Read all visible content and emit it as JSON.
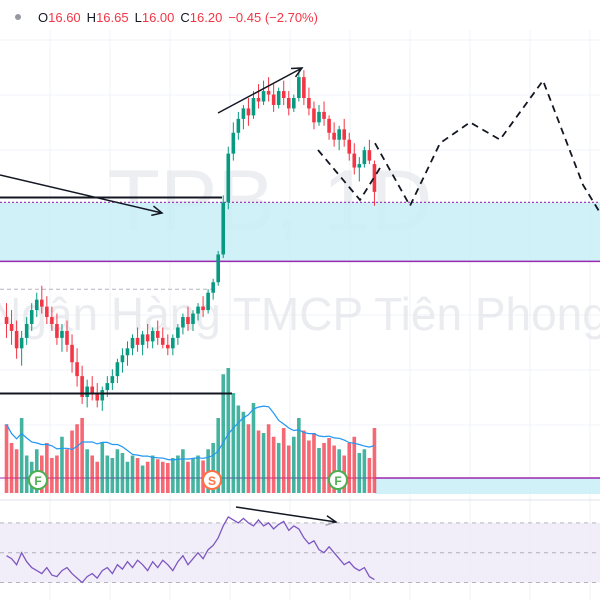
{
  "header": {
    "o_label": "O",
    "o_value": "16.60",
    "h_label": "H",
    "h_value": "16.65",
    "l_label": "L",
    "l_value": "16.00",
    "c_label": "C",
    "c_value": "16.20",
    "change": "−0.45 (−2.70%)"
  },
  "watermark": {
    "symbol": "TPB, 1D",
    "company": "Ngân Hàng TMCP Tiên Phong"
  },
  "markers": {
    "f1": "F",
    "s": "S",
    "f2": "F"
  },
  "colors": {
    "up": "#089981",
    "down": "#f23645",
    "zone_fill": "#c9eef7",
    "purple_line": "#9c27b0",
    "rsi_line": "#7e57c2",
    "rsi_band": "#ede7f6",
    "vol_ma": "#2196f3",
    "marker_green": "#4caf50",
    "marker_orange": "#ff7043"
  },
  "chart_data": {
    "type": "candlestick",
    "symbol": "TPB",
    "interval": "1D",
    "last_bar": {
      "open": 16.6,
      "high": 16.65,
      "low": 16.0,
      "close": 16.2,
      "change": -0.45,
      "change_pct": -2.7
    },
    "candles": [
      [
        14.4,
        14.6,
        14.1,
        14.3
      ],
      [
        14.3,
        14.5,
        14.0,
        14.2
      ],
      [
        14.2,
        14.35,
        13.8,
        13.95
      ],
      [
        13.95,
        14.2,
        13.7,
        14.1
      ],
      [
        14.1,
        14.4,
        14.0,
        14.3
      ],
      [
        14.3,
        14.6,
        14.2,
        14.5
      ],
      [
        14.5,
        14.75,
        14.4,
        14.65
      ],
      [
        14.65,
        14.85,
        14.45,
        14.55
      ],
      [
        14.55,
        14.7,
        14.3,
        14.4
      ],
      [
        14.4,
        14.55,
        14.2,
        14.3
      ],
      [
        14.3,
        14.45,
        14.0,
        14.1
      ],
      [
        14.1,
        14.3,
        13.9,
        14.2
      ],
      [
        14.2,
        14.35,
        13.9,
        14.0
      ],
      [
        14.0,
        14.15,
        13.6,
        13.75
      ],
      [
        13.75,
        13.95,
        13.4,
        13.55
      ],
      [
        13.55,
        13.7,
        13.15,
        13.25
      ],
      [
        13.25,
        13.5,
        13.1,
        13.4
      ],
      [
        13.4,
        13.55,
        13.2,
        13.3
      ],
      [
        13.3,
        13.45,
        13.1,
        13.2
      ],
      [
        13.2,
        13.4,
        13.05,
        13.35
      ],
      [
        13.35,
        13.55,
        13.25,
        13.45
      ],
      [
        13.45,
        13.65,
        13.35,
        13.55
      ],
      [
        13.55,
        13.8,
        13.45,
        13.75
      ],
      [
        13.75,
        13.95,
        13.6,
        13.85
      ],
      [
        13.85,
        14.05,
        13.7,
        13.95
      ],
      [
        13.95,
        14.15,
        13.85,
        14.1
      ],
      [
        14.1,
        14.25,
        13.9,
        14.0
      ],
      [
        14.0,
        14.2,
        13.85,
        14.15
      ],
      [
        14.15,
        14.3,
        13.95,
        14.05
      ],
      [
        14.05,
        14.25,
        13.95,
        14.2
      ],
      [
        14.2,
        14.35,
        14.0,
        14.1
      ],
      [
        14.1,
        14.25,
        13.95,
        14.0
      ],
      [
        14.0,
        14.15,
        13.85,
        13.95
      ],
      [
        13.95,
        14.15,
        13.85,
        14.1
      ],
      [
        14.1,
        14.3,
        14.0,
        14.25
      ],
      [
        14.25,
        14.45,
        14.15,
        14.4
      ],
      [
        14.4,
        14.55,
        14.2,
        14.3
      ],
      [
        14.3,
        14.5,
        14.2,
        14.45
      ],
      [
        14.45,
        14.6,
        14.35,
        14.55
      ],
      [
        14.55,
        14.7,
        14.4,
        14.5
      ],
      [
        14.5,
        14.8,
        14.45,
        14.75
      ],
      [
        14.75,
        14.95,
        14.65,
        14.9
      ],
      [
        14.9,
        15.35,
        14.85,
        15.3
      ],
      [
        15.3,
        16.15,
        15.25,
        16.05
      ],
      [
        16.05,
        16.85,
        15.95,
        16.75
      ],
      [
        16.75,
        17.2,
        16.65,
        17.05
      ],
      [
        17.05,
        17.35,
        16.95,
        17.25
      ],
      [
        17.25,
        17.45,
        17.1,
        17.4
      ],
      [
        17.4,
        17.55,
        17.15,
        17.3
      ],
      [
        17.3,
        17.65,
        17.25,
        17.55
      ],
      [
        17.55,
        17.75,
        17.4,
        17.5
      ],
      [
        17.5,
        17.8,
        17.45,
        17.65
      ],
      [
        17.65,
        17.85,
        17.5,
        17.6
      ],
      [
        17.6,
        17.75,
        17.35,
        17.45
      ],
      [
        17.45,
        17.7,
        17.4,
        17.65
      ],
      [
        17.65,
        17.8,
        17.45,
        17.55
      ],
      [
        17.55,
        17.65,
        17.3,
        17.4
      ],
      [
        17.4,
        17.6,
        17.35,
        17.55
      ],
      [
        17.55,
        17.95,
        17.5,
        17.85
      ],
      [
        17.85,
        17.95,
        17.45,
        17.55
      ],
      [
        17.55,
        17.7,
        17.3,
        17.4
      ],
      [
        17.4,
        17.5,
        17.1,
        17.2
      ],
      [
        17.2,
        17.45,
        17.15,
        17.35
      ],
      [
        17.35,
        17.5,
        17.15,
        17.25
      ],
      [
        17.25,
        17.3,
        16.95,
        17.05
      ],
      [
        17.05,
        17.2,
        16.85,
        16.95
      ],
      [
        16.95,
        17.15,
        16.8,
        17.1
      ],
      [
        17.1,
        17.25,
        16.85,
        16.95
      ],
      [
        16.95,
        17.05,
        16.65,
        16.75
      ],
      [
        16.75,
        16.9,
        16.45,
        16.55
      ],
      [
        16.55,
        16.7,
        16.35,
        16.6
      ],
      [
        16.6,
        16.85,
        16.55,
        16.8
      ],
      [
        16.8,
        16.95,
        16.6,
        16.65
      ],
      [
        16.6,
        16.65,
        16.0,
        16.2
      ]
    ],
    "volume": [
      0.55,
      0.4,
      0.35,
      0.6,
      0.3,
      0.25,
      0.35,
      0.3,
      0.4,
      0.28,
      0.3,
      0.45,
      0.35,
      0.5,
      0.55,
      0.6,
      0.35,
      0.3,
      0.25,
      0.4,
      0.3,
      0.28,
      0.35,
      0.32,
      0.25,
      0.3,
      0.28,
      0.22,
      0.25,
      0.3,
      0.27,
      0.25,
      0.24,
      0.28,
      0.3,
      0.35,
      0.25,
      0.28,
      0.3,
      0.26,
      0.35,
      0.4,
      0.6,
      0.95,
      1.0,
      0.8,
      0.7,
      0.65,
      0.55,
      0.72,
      0.5,
      0.48,
      0.55,
      0.45,
      0.4,
      0.52,
      0.38,
      0.45,
      0.6,
      0.5,
      0.42,
      0.48,
      0.36,
      0.4,
      0.44,
      0.38,
      0.35,
      0.3,
      0.4,
      0.45,
      0.32,
      0.35,
      0.28,
      0.52
    ],
    "horizontal_levels": [
      {
        "name": "resistance",
        "value": 16.05
      },
      {
        "name": "support-upper-black",
        "value": 16.12
      },
      {
        "name": "zone-bottom",
        "value": 15.2
      },
      {
        "name": "support-black-low",
        "value": 13.3
      },
      {
        "name": "dashed-level",
        "value": 14.8
      }
    ],
    "projection_path": [
      16.9,
      16.0,
      16.9,
      17.2,
      16.95,
      17.8,
      16.3,
      15.9
    ],
    "rsi": [
      48,
      46,
      42,
      50,
      44,
      40,
      38,
      36,
      40,
      35,
      34,
      38,
      40,
      36,
      33,
      30,
      34,
      36,
      33,
      38,
      40,
      36,
      42,
      39,
      44,
      40,
      45,
      42,
      38,
      44,
      40,
      45,
      42,
      38,
      44,
      48,
      42,
      46,
      50,
      46,
      52,
      55,
      60,
      68,
      74,
      72,
      70,
      73,
      70,
      68,
      72,
      68,
      70,
      66,
      69,
      71,
      65,
      68,
      66,
      60,
      56,
      58,
      52,
      50,
      54,
      50,
      46,
      42,
      44,
      40,
      38,
      40,
      34,
      32
    ],
    "rsi_levels": [
      70,
      50,
      30
    ]
  }
}
